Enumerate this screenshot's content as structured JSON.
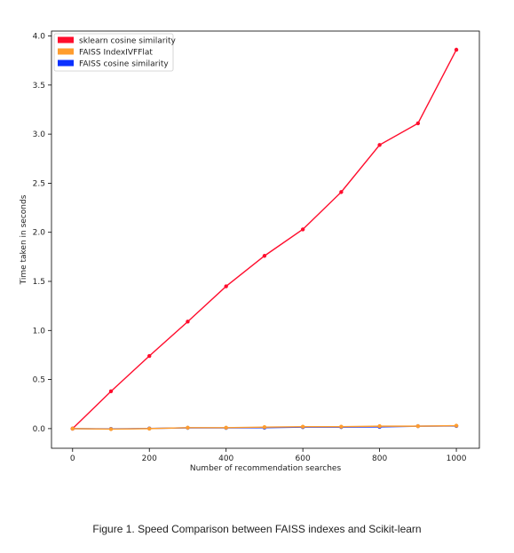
{
  "chart_data": {
    "type": "line",
    "title": "",
    "xlabel": "Number of recommendation searches",
    "ylabel": "Time taken in seconds",
    "xlim": [
      -55,
      1060
    ],
    "ylim": [
      -0.2,
      4.05
    ],
    "xticks": [
      0,
      200,
      400,
      600,
      800,
      1000
    ],
    "yticks": [
      0.0,
      0.5,
      1.0,
      1.5,
      2.0,
      2.5,
      3.0,
      3.5,
      4.0
    ],
    "grid": false,
    "legend_position": "top-left",
    "x": [
      0,
      100,
      200,
      300,
      400,
      500,
      600,
      700,
      800,
      900,
      1000
    ],
    "series": [
      {
        "name": "sklearn cosine similarity",
        "color": "#ff0d2d",
        "values": [
          0.0,
          0.38,
          0.74,
          1.09,
          1.45,
          1.76,
          2.03,
          2.41,
          2.89,
          3.11,
          3.86
        ]
      },
      {
        "name": "FAISS IndexIVFFlat",
        "color": "#ff9d2e",
        "values": [
          0.0,
          -0.005,
          0.0,
          0.01,
          0.01,
          0.015,
          0.02,
          0.02,
          0.025,
          0.025,
          0.03
        ]
      },
      {
        "name": "FAISS cosine similarity",
        "color": "#0b31ff",
        "values": [
          0.0,
          -0.003,
          0.002,
          0.008,
          0.007,
          0.01,
          0.015,
          0.016,
          0.018,
          0.025,
          0.027
        ]
      }
    ]
  },
  "caption": "Figure 1. Speed Comparison between FAISS indexes and Scikit-learn"
}
